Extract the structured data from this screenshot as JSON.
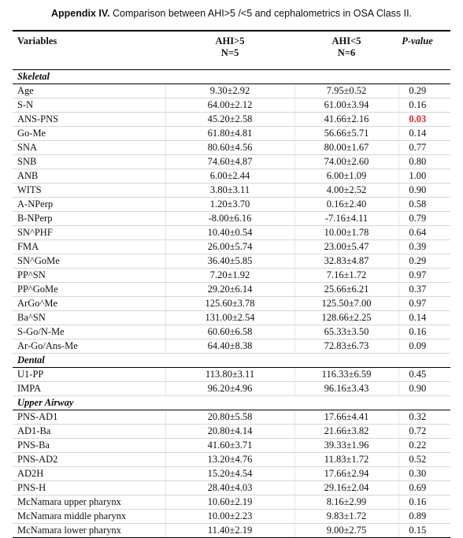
{
  "title": {
    "label": "Appendix IV.",
    "text": "Comparison between AHI>5 /<5 and cephalometrics in OSA Class II."
  },
  "header": {
    "variables": "Variables",
    "group1": "AHI>5",
    "group1_n": "N=5",
    "group2": "AHI<5",
    "group2_n": "N=6",
    "p_value": "P-value"
  },
  "highlight_color": "#e8211f",
  "sections": [
    {
      "name": "Skeletal",
      "rows": [
        [
          "Age",
          "9.30±2.92",
          "7.95±0.52",
          "0.29"
        ],
        [
          "S-N",
          "64.00±2.12",
          "61.00±3.94",
          "0.16"
        ],
        [
          "ANS-PNS",
          "45.20±2.58",
          "41.66±2.16",
          "0.03"
        ],
        [
          "Go-Me",
          "61.80±4.81",
          "56.66±5.71",
          "0.14"
        ],
        [
          "SNA",
          "80.60±4.56",
          "80.00±1.67",
          "0.77"
        ],
        [
          "SNB",
          "74.60±4.87",
          "74.00±2.60",
          "0.80"
        ],
        [
          "ANB",
          "6.00±2.44",
          "6.00±1.09",
          "1.00"
        ],
        [
          "WITS",
          "3.80±3.11",
          "4.00±2.52",
          "0.90"
        ],
        [
          "A-NPerp",
          "1.20±3.70",
          "0.16±2.40",
          "0.58"
        ],
        [
          "B-NPerp",
          "-8.00±6.16",
          "-7.16±4.11",
          "0.79"
        ],
        [
          "SN^PHF",
          "10.40±0.54",
          "10.00±1.78",
          "0.64"
        ],
        [
          "FMA",
          "26.00±5.74",
          "23.00±5.47",
          "0.39"
        ],
        [
          "SN^GoMe",
          "36.40±5.85",
          "32.83±4.87",
          "0.29"
        ],
        [
          "PP^SN",
          "7.20±1.92",
          "7.16±1.72",
          "0.97"
        ],
        [
          "PP^GoMe",
          "29.20±6.14",
          "25.66±6.21",
          "0.37"
        ],
        [
          "ArGo^Me",
          "125.60±3.78",
          "125.50±7.00",
          "0.97"
        ],
        [
          "Ba^SN",
          "131.00±2.54",
          "128.66±2.25",
          "0.14"
        ],
        [
          "S-Go/N-Me",
          "60.60±6.58",
          "65.33±3.50",
          "0.16"
        ],
        [
          "Ar-Go/Ans-Me",
          "64.40±8.38",
          "72.83±6.73",
          "0.09"
        ]
      ]
    },
    {
      "name": "Dental",
      "rows": [
        [
          "U1-PP",
          "113.80±3.11",
          "116.33±6.59",
          "0.45"
        ],
        [
          "IMPA",
          "96.20±4.96",
          "96.16±3.43",
          "0.90"
        ]
      ]
    },
    {
      "name": "Upper Airway",
      "rows": [
        [
          "PNS-AD1",
          "20.80±5.58",
          "17.66±4.41",
          "0.32"
        ],
        [
          "AD1-Ba",
          "20.80±4.14",
          "21.66±3.82",
          "0.72"
        ],
        [
          "PNS-Ba",
          "41.60±3.71",
          "39.33±1.96",
          "0.22"
        ],
        [
          "PNS-AD2",
          "13.20±4.76",
          "11.83±1.72",
          "0.52"
        ],
        [
          "AD2H",
          "15.20±4.54",
          "17.66±2.94",
          "0.30"
        ],
        [
          "PNS-H",
          "28.40±4.03",
          "29.16±2.04",
          "0.69"
        ],
        [
          "McNamara upper pharynx",
          "10.60±2.19",
          "8.16±2.99",
          "0.16"
        ],
        [
          "McNamara middle pharynx",
          "10.00±2.23",
          "9.83±1.72",
          "0.89"
        ],
        [
          "McNamara lower pharynx",
          "11.40±2.19",
          "9.00±2.75",
          "0.15"
        ]
      ]
    }
  ],
  "highlighted": [
    {
      "section": 0,
      "row": 2,
      "column": 3
    }
  ]
}
